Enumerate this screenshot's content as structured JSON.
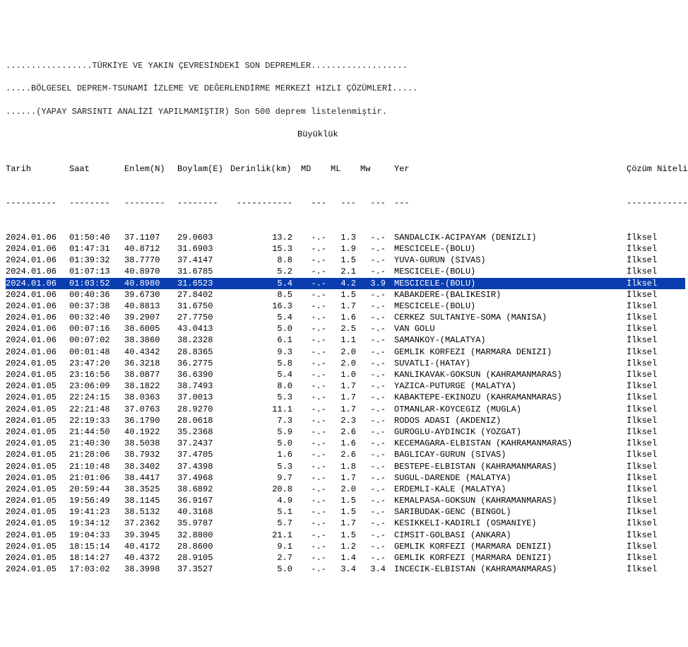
{
  "headerLines": [
    ".................TÜRKİYE VE YAKIN ÇEVRESİNDEKİ SON DEPREMLER...................",
    ".....BÖLGESEL DEPREM-TSUNAMİ İZLEME VE DEĞERLENDİRME MERKEZİ HIZLI ÇÖZÜMLERİ.....",
    "......(YAPAY SARSINTI ANALİZİ YAPILMAMIŞTIR) Son 500 deprem listelenmiştir."
  ],
  "subheader": "Büyüklük",
  "columns": {
    "date": "Tarih",
    "time": "Saat",
    "enlem": "Enlem(N)",
    "boylam": "Boylam(E)",
    "depth": "Derinlik(km)",
    "md": "MD",
    "ml": "ML",
    "mw": "Mw",
    "yer": "Yer",
    "qual": "Çözüm Niteliği"
  },
  "dashes": {
    "date": "----------",
    "time": "--------",
    "enlem": "--------",
    "boylam": "--------",
    "depth": "-----------",
    "md": "---",
    "ml": "---",
    "mw": "---",
    "yer": "---",
    "qual": "--------------"
  },
  "selectedIndex": 4,
  "rows": [
    {
      "date": "2024.01.06",
      "time": "01:50:40",
      "enlem": "37.1107",
      "boylam": "29.0603",
      "depth": "13.2",
      "md": "-.-",
      "ml": "1.3",
      "mw": "-.-",
      "yer": "SANDALCIK-ACIPAYAM (DENIZLI)",
      "qual": "İlksel"
    },
    {
      "date": "2024.01.06",
      "time": "01:47:31",
      "enlem": "40.8712",
      "boylam": "31.6903",
      "depth": "15.3",
      "md": "-.-",
      "ml": "1.9",
      "mw": "-.-",
      "yer": "MESCICELE-(BOLU)",
      "qual": "İlksel"
    },
    {
      "date": "2024.01.06",
      "time": "01:39:32",
      "enlem": "38.7770",
      "boylam": "37.4147",
      "depth": "8.8",
      "md": "-.-",
      "ml": "1.5",
      "mw": "-.-",
      "yer": "YUVA-GURUN (SIVAS)",
      "qual": "İlksel"
    },
    {
      "date": "2024.01.06",
      "time": "01:07:13",
      "enlem": "40.8970",
      "boylam": "31.6785",
      "depth": "5.2",
      "md": "-.-",
      "ml": "2.1",
      "mw": "-.-",
      "yer": "MESCICELE-(BOLU)",
      "qual": "İlksel"
    },
    {
      "date": "2024.01.06",
      "time": "01:03:52",
      "enlem": "40.8980",
      "boylam": "31.6523",
      "depth": "5.4",
      "md": "-.-",
      "ml": "4.2",
      "mw": "3.9",
      "yer": "MESCICELE-(BOLU)",
      "qual": "İlksel"
    },
    {
      "date": "2024.01.06",
      "time": "00:40:36",
      "enlem": "39.6730",
      "boylam": "27.8402",
      "depth": "8.5",
      "md": "-.-",
      "ml": "1.5",
      "mw": "-.-",
      "yer": "KABAKDERE-(BALIKESIR)",
      "qual": "İlksel"
    },
    {
      "date": "2024.01.06",
      "time": "00:37:38",
      "enlem": "40.8813",
      "boylam": "31.6750",
      "depth": "16.3",
      "md": "-.-",
      "ml": "1.7",
      "mw": "-.-",
      "yer": "MESCICELE-(BOLU)",
      "qual": "İlksel"
    },
    {
      "date": "2024.01.06",
      "time": "00:32:40",
      "enlem": "39.2907",
      "boylam": "27.7750",
      "depth": "5.4",
      "md": "-.-",
      "ml": "1.6",
      "mw": "-.-",
      "yer": "CERKEZ SULTANIYE-SOMA (MANISA)",
      "qual": "İlksel"
    },
    {
      "date": "2024.01.06",
      "time": "00:07:16",
      "enlem": "38.6005",
      "boylam": "43.0413",
      "depth": "5.0",
      "md": "-.-",
      "ml": "2.5",
      "mw": "-.-",
      "yer": "VAN GOLU",
      "qual": "İlksel"
    },
    {
      "date": "2024.01.06",
      "time": "00:07:02",
      "enlem": "38.3860",
      "boylam": "38.2328",
      "depth": "6.1",
      "md": "-.-",
      "ml": "1.1",
      "mw": "-.-",
      "yer": "SAMANKOY-(MALATYA)",
      "qual": "İlksel"
    },
    {
      "date": "2024.01.06",
      "time": "00:01:48",
      "enlem": "40.4342",
      "boylam": "28.8365",
      "depth": "9.3",
      "md": "-.-",
      "ml": "2.0",
      "mw": "-.-",
      "yer": "GEMLIK KORFEZI (MARMARA DENIZI)",
      "qual": "İlksel"
    },
    {
      "date": "2024.01.05",
      "time": "23:47:20",
      "enlem": "36.3218",
      "boylam": "36.2775",
      "depth": "5.8",
      "md": "-.-",
      "ml": "2.0",
      "mw": "-.-",
      "yer": "SUVATLI-(HATAY)",
      "qual": "İlksel"
    },
    {
      "date": "2024.01.05",
      "time": "23:16:56",
      "enlem": "38.0877",
      "boylam": "36.6390",
      "depth": "5.4",
      "md": "-.-",
      "ml": "1.0",
      "mw": "-.-",
      "yer": "KANLIKAVAK-GOKSUN (KAHRAMANMARAS)",
      "qual": "İlksel"
    },
    {
      "date": "2024.01.05",
      "time": "23:06:09",
      "enlem": "38.1822",
      "boylam": "38.7493",
      "depth": "8.0",
      "md": "-.-",
      "ml": "1.7",
      "mw": "-.-",
      "yer": "YAZICA-PUTURGE (MALATYA)",
      "qual": "İlksel"
    },
    {
      "date": "2024.01.05",
      "time": "22:24:15",
      "enlem": "38.0363",
      "boylam": "37.0013",
      "depth": "5.3",
      "md": "-.-",
      "ml": "1.7",
      "mw": "-.-",
      "yer": "KABAKTEPE-EKINOZU (KAHRAMANMARAS)",
      "qual": "İlksel"
    },
    {
      "date": "2024.01.05",
      "time": "22:21:48",
      "enlem": "37.0763",
      "boylam": "28.9270",
      "depth": "11.1",
      "md": "-.-",
      "ml": "1.7",
      "mw": "-.-",
      "yer": "OTMANLAR-KOYCEGIZ (MUGLA)",
      "qual": "İlksel"
    },
    {
      "date": "2024.01.05",
      "time": "22:19:33",
      "enlem": "36.1790",
      "boylam": "28.0618",
      "depth": "7.3",
      "md": "-.-",
      "ml": "2.3",
      "mw": "-.-",
      "yer": "RODOS ADASI (AKDENIZ)",
      "qual": "İlksel"
    },
    {
      "date": "2024.01.05",
      "time": "21:44:50",
      "enlem": "40.1922",
      "boylam": "35.2368",
      "depth": "5.9",
      "md": "-.-",
      "ml": "2.6",
      "mw": "-.-",
      "yer": "GUROGLU-AYDINCIK (YOZGAT)",
      "qual": "İlksel"
    },
    {
      "date": "2024.01.05",
      "time": "21:40:30",
      "enlem": "38.5038",
      "boylam": "37.2437",
      "depth": "5.0",
      "md": "-.-",
      "ml": "1.6",
      "mw": "-.-",
      "yer": "KECEMAGARA-ELBISTAN (KAHRAMANMARAS)",
      "qual": "İlksel"
    },
    {
      "date": "2024.01.05",
      "time": "21:28:06",
      "enlem": "38.7932",
      "boylam": "37.4705",
      "depth": "1.6",
      "md": "-.-",
      "ml": "2.6",
      "mw": "-.-",
      "yer": "BAGLICAY-GURUN (SIVAS)",
      "qual": "İlksel"
    },
    {
      "date": "2024.01.05",
      "time": "21:10:48",
      "enlem": "38.3402",
      "boylam": "37.4398",
      "depth": "5.3",
      "md": "-.-",
      "ml": "1.8",
      "mw": "-.-",
      "yer": "BESTEPE-ELBISTAN (KAHRAMANMARAS)",
      "qual": "İlksel"
    },
    {
      "date": "2024.01.05",
      "time": "21:01:06",
      "enlem": "38.4417",
      "boylam": "37.4968",
      "depth": "9.7",
      "md": "-.-",
      "ml": "1.7",
      "mw": "-.-",
      "yer": "SUGUL-DARENDE (MALATYA)",
      "qual": "İlksel"
    },
    {
      "date": "2024.01.05",
      "time": "20:59:44",
      "enlem": "38.3525",
      "boylam": "38.6892",
      "depth": "20.8",
      "md": "-.-",
      "ml": "2.0",
      "mw": "-.-",
      "yer": "ERDEMLI-KALE (MALATYA)",
      "qual": "İlksel"
    },
    {
      "date": "2024.01.05",
      "time": "19:56:49",
      "enlem": "38.1145",
      "boylam": "36.9167",
      "depth": "4.9",
      "md": "-.-",
      "ml": "1.5",
      "mw": "-.-",
      "yer": "KEMALPASA-GOKSUN (KAHRAMANMARAS)",
      "qual": "İlksel"
    },
    {
      "date": "2024.01.05",
      "time": "19:41:23",
      "enlem": "38.5132",
      "boylam": "40.3168",
      "depth": "5.1",
      "md": "-.-",
      "ml": "1.5",
      "mw": "-.-",
      "yer": "SARIBUDAK-GENC (BINGOL)",
      "qual": "İlksel"
    },
    {
      "date": "2024.01.05",
      "time": "19:34:12",
      "enlem": "37.2362",
      "boylam": "35.9787",
      "depth": "5.7",
      "md": "-.-",
      "ml": "1.7",
      "mw": "-.-",
      "yer": "KESIKKELI-KADIRLI (OSMANIYE)",
      "qual": "İlksel"
    },
    {
      "date": "2024.01.05",
      "time": "19:04:33",
      "enlem": "39.3945",
      "boylam": "32.8800",
      "depth": "21.1",
      "md": "-.-",
      "ml": "1.5",
      "mw": "-.-",
      "yer": "CIMSIT-GOLBASI (ANKARA)",
      "qual": "İlksel"
    },
    {
      "date": "2024.01.05",
      "time": "18:15:14",
      "enlem": "40.4172",
      "boylam": "28.8600",
      "depth": "9.1",
      "md": "-.-",
      "ml": "1.2",
      "mw": "-.-",
      "yer": "GEMLIK KORFEZI (MARMARA DENIZI)",
      "qual": "İlksel"
    },
    {
      "date": "2024.01.05",
      "time": "18:14:27",
      "enlem": "40.4372",
      "boylam": "28.9105",
      "depth": "2.7",
      "md": "-.-",
      "ml": "1.4",
      "mw": "-.-",
      "yer": "GEMLIK KORFEZI (MARMARA DENIZI)",
      "qual": "İlksel"
    },
    {
      "date": "2024.01.05",
      "time": "17:03:02",
      "enlem": "38.3998",
      "boylam": "37.3527",
      "depth": "5.0",
      "md": "-.-",
      "ml": "3.4",
      "mw": "3.4",
      "yer": "INCECIK-ELBISTAN (KAHRAMANMARAS)",
      "qual": "İlksel"
    }
  ]
}
